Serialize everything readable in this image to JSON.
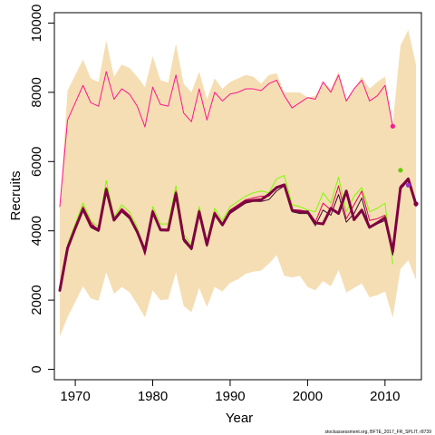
{
  "chart_data": {
    "type": "line",
    "xlabel": "Year",
    "ylabel": "Recruits",
    "xlim": [
      1967.3,
      2014.7
    ],
    "ylim": [
      -300,
      10300
    ],
    "xticks": [
      1970,
      1980,
      1990,
      2000,
      2010
    ],
    "yticks": [
      0,
      2000,
      4000,
      6000,
      8000,
      10000
    ],
    "grid": false,
    "credit": "stockassessment.org, BFTE_2017_FR_SPLIT, r8739",
    "x": [
      1968,
      1969,
      1970,
      1971,
      1972,
      1973,
      1974,
      1975,
      1976,
      1977,
      1978,
      1979,
      1980,
      1981,
      1982,
      1983,
      1984,
      1985,
      1986,
      1987,
      1988,
      1989,
      1990,
      1991,
      1992,
      1993,
      1994,
      1995,
      1996,
      1997,
      1998,
      1999,
      2000,
      2001,
      2002,
      2003,
      2004,
      2005,
      2006,
      2007,
      2008,
      2009,
      2010,
      2011,
      2012,
      2013,
      2014
    ],
    "band": {
      "color": "#f5deb3",
      "lower": [
        950,
        1500,
        1950,
        2400,
        2050,
        1980,
        2800,
        2180,
        2380,
        2230,
        1880,
        1500,
        2280,
        2000,
        2020,
        2800,
        1830,
        1650,
        2350,
        1800,
        2380,
        2250,
        2500,
        2600,
        2760,
        2820,
        2850,
        3050,
        3300,
        2700,
        2650,
        2700,
        2380,
        2280,
        2550,
        2400,
        2870,
        2220,
        2350,
        2480,
        2080,
        2140,
        2250,
        1500,
        2900,
        3150,
        2580
      ],
      "upper": [
        4650,
        8050,
        8500,
        8950,
        8400,
        8300,
        9500,
        8450,
        8800,
        8700,
        8450,
        8150,
        9050,
        8350,
        8280,
        9400,
        8250,
        8000,
        8600,
        7800,
        8400,
        8100,
        8300,
        8400,
        8500,
        8450,
        8250,
        8500,
        8550,
        8000,
        8000,
        8000,
        7850,
        7900,
        8300,
        8100,
        8600,
        7800,
        8100,
        8450,
        8100,
        8300,
        8450,
        7100,
        9350,
        9800,
        8800
      ]
    },
    "series": [
      {
        "color": "#ff1493",
        "width": 1,
        "values": [
          4700,
          7200,
          7700,
          8200,
          7700,
          7600,
          8600,
          7800,
          8100,
          7950,
          7600,
          7000,
          8150,
          7650,
          7600,
          8500,
          7400,
          7150,
          8100,
          7200,
          8000,
          7750,
          7950,
          8000,
          8100,
          8100,
          8050,
          8250,
          8350,
          7900,
          7550,
          7700,
          7850,
          7800,
          8300,
          8000,
          8500,
          7750,
          8100,
          8350,
          7750,
          7900,
          8200,
          7020,
          null,
          null,
          null
        ]
      },
      {
        "color": "#7cfc00",
        "width": 1,
        "values": [
          2300,
          3600,
          4200,
          4800,
          4300,
          4100,
          5450,
          4400,
          4750,
          4550,
          4100,
          3400,
          4700,
          4200,
          4200,
          5300,
          3900,
          3600,
          4700,
          3700,
          4650,
          4300,
          4700,
          4850,
          5000,
          5100,
          5150,
          5100,
          5500,
          5600,
          4750,
          4700,
          4600,
          4550,
          5100,
          4800,
          5550,
          4550,
          5000,
          5250,
          4550,
          4650,
          4800,
          3050,
          null,
          null,
          null
        ]
      },
      {
        "color": "#e6005c",
        "width": 1,
        "values": [
          2300,
          3500,
          4100,
          4700,
          4250,
          4000,
          5250,
          4350,
          4650,
          4450,
          4000,
          3300,
          4600,
          4050,
          4050,
          5150,
          3800,
          3500,
          4600,
          3650,
          4550,
          4200,
          4600,
          4750,
          4900,
          4950,
          5000,
          5000,
          5250,
          5350,
          4600,
          4600,
          4550,
          4250,
          4800,
          4600,
          5300,
          4350,
          4750,
          5150,
          4300,
          4350,
          4450,
          3450,
          5300,
          5500,
          4700
        ]
      },
      {
        "color": "#3c0a32",
        "width": 1,
        "values": [
          2260,
          3450,
          4050,
          4600,
          4100,
          3980,
          5150,
          4280,
          4550,
          4350,
          3950,
          3350,
          4500,
          4000,
          4000,
          5050,
          3700,
          3450,
          4500,
          3550,
          4450,
          4150,
          4500,
          4650,
          4800,
          4850,
          4850,
          4900,
          5150,
          5300,
          4550,
          4500,
          4500,
          4150,
          4600,
          4450,
          5050,
          4250,
          4500,
          4950,
          4100,
          4200,
          4300,
          3300,
          5200,
          5450,
          4750
        ]
      },
      {
        "color": "#800040",
        "width": 3,
        "values": [
          2280,
          3500,
          4080,
          4630,
          4150,
          4020,
          5200,
          4310,
          4590,
          4400,
          3970,
          3420,
          4550,
          4030,
          4020,
          5080,
          3760,
          3490,
          4550,
          3600,
          4500,
          4170,
          4560,
          4700,
          4850,
          4880,
          4900,
          5050,
          5250,
          5330,
          4600,
          4550,
          4550,
          4230,
          4200,
          4650,
          4500,
          5150,
          4320,
          4600,
          4100,
          4230,
          4380,
          3400,
          5250,
          5500,
          4760
        ]
      }
    ],
    "points": [
      {
        "x": 2011,
        "y": 7020,
        "color": "#ff1493"
      },
      {
        "x": 2012,
        "y": 5750,
        "color": "#66cc00"
      },
      {
        "x": 2013,
        "y": 5320,
        "color": "#9932cc"
      },
      {
        "x": 2014,
        "y": 4780,
        "color": "#800040"
      }
    ]
  }
}
